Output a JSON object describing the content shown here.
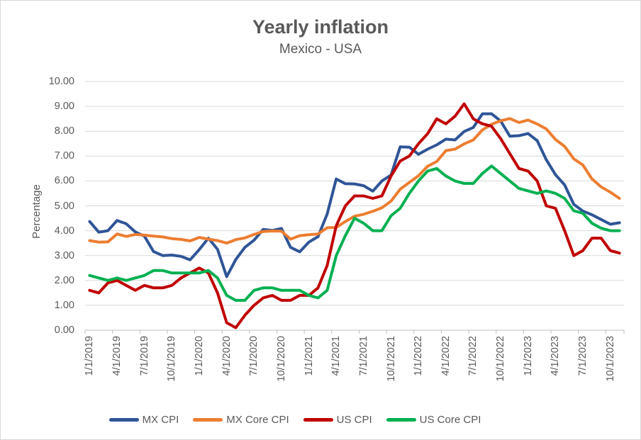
{
  "chart_data": {
    "type": "line",
    "title": "Yearly inflation",
    "subtitle": "Mexico - USA",
    "ylabel": "Percentage",
    "ylim": [
      0,
      10
    ],
    "ytick_step": 1,
    "yticklabels": [
      "0.00",
      "1.00",
      "2.00",
      "3.00",
      "4.00",
      "5.00",
      "6.00",
      "7.00",
      "8.00",
      "9.00",
      "10.00"
    ],
    "x_frequency": "monthly",
    "x_range": [
      "1/1/2019",
      "11/1/2023"
    ],
    "xticklabels": [
      "1/1/2019",
      "4/1/2019",
      "7/1/2019",
      "10/1/2019",
      "1/1/2020",
      "4/1/2020",
      "7/1/2020",
      "10/1/2020",
      "1/1/2021",
      "4/1/2021",
      "7/1/2021",
      "10/1/2021",
      "1/1/2022",
      "4/1/2022",
      "7/1/2022",
      "10/1/2022",
      "1/1/2023",
      "4/1/2023",
      "7/1/2023",
      "10/1/2023"
    ],
    "grid": true,
    "legend_position": "bottom",
    "series": [
      {
        "name": "MX CPI",
        "color": "#2F5597",
        "values": [
          4.37,
          3.94,
          4.0,
          4.41,
          4.28,
          3.95,
          3.78,
          3.16,
          3.0,
          3.02,
          2.97,
          2.83,
          3.24,
          3.7,
          3.25,
          2.15,
          2.84,
          3.33,
          3.62,
          4.05,
          4.01,
          4.09,
          3.33,
          3.15,
          3.54,
          3.76,
          4.67,
          6.08,
          5.89,
          5.88,
          5.81,
          5.59,
          6.0,
          6.24,
          7.37,
          7.36,
          7.07,
          7.28,
          7.45,
          7.68,
          7.65,
          7.99,
          8.15,
          8.7,
          8.7,
          8.41,
          7.8,
          7.82,
          7.91,
          7.62,
          6.85,
          6.25,
          5.84,
          5.06,
          4.79,
          4.64,
          4.45,
          4.26,
          4.32
        ]
      },
      {
        "name": "MX Core CPI",
        "color": "#ED7D31",
        "values": [
          3.6,
          3.54,
          3.55,
          3.87,
          3.77,
          3.85,
          3.82,
          3.78,
          3.75,
          3.68,
          3.65,
          3.59,
          3.73,
          3.66,
          3.6,
          3.5,
          3.64,
          3.71,
          3.85,
          3.97,
          3.99,
          3.98,
          3.66,
          3.8,
          3.84,
          3.87,
          4.12,
          4.13,
          4.37,
          4.58,
          4.66,
          4.78,
          4.92,
          5.19,
          5.67,
          5.94,
          6.21,
          6.59,
          6.78,
          7.22,
          7.28,
          7.49,
          7.65,
          8.05,
          8.28,
          8.42,
          8.51,
          8.35,
          8.45,
          8.29,
          8.09,
          7.67,
          7.39,
          6.89,
          6.64,
          6.08,
          5.76,
          5.55,
          5.3
        ]
      },
      {
        "name": "US CPI",
        "color": "#C00000",
        "values": [
          1.6,
          1.5,
          1.9,
          2.0,
          1.8,
          1.6,
          1.8,
          1.7,
          1.7,
          1.8,
          2.1,
          2.3,
          2.5,
          2.3,
          1.5,
          0.3,
          0.1,
          0.6,
          1.0,
          1.3,
          1.4,
          1.2,
          1.2,
          1.4,
          1.4,
          1.7,
          2.6,
          4.2,
          5.0,
          5.4,
          5.4,
          5.3,
          5.4,
          6.2,
          6.8,
          7.0,
          7.5,
          7.9,
          8.5,
          8.3,
          8.6,
          9.1,
          8.5,
          8.3,
          8.2,
          7.7,
          7.1,
          6.5,
          6.4,
          6.0,
          5.0,
          4.9,
          4.0,
          3.0,
          3.2,
          3.7,
          3.7,
          3.2,
          3.1
        ]
      },
      {
        "name": "US Core CPI",
        "color": "#00B050",
        "values": [
          2.2,
          2.1,
          2.0,
          2.1,
          2.0,
          2.1,
          2.2,
          2.4,
          2.4,
          2.3,
          2.3,
          2.3,
          2.3,
          2.4,
          2.1,
          1.4,
          1.2,
          1.2,
          1.6,
          1.7,
          1.7,
          1.6,
          1.6,
          1.6,
          1.4,
          1.3,
          1.6,
          3.0,
          3.8,
          4.5,
          4.3,
          4.0,
          4.0,
          4.6,
          4.9,
          5.5,
          6.0,
          6.4,
          6.5,
          6.2,
          6.0,
          5.9,
          5.9,
          6.3,
          6.6,
          6.3,
          6.0,
          5.7,
          5.6,
          5.5,
          5.6,
          5.5,
          5.3,
          4.8,
          4.7,
          4.3,
          4.1,
          4.0,
          4.0
        ]
      }
    ],
    "palette": {
      "gridline": "#D9D9D9",
      "axis_line": "#BFBFBF",
      "text": "#595959"
    }
  }
}
